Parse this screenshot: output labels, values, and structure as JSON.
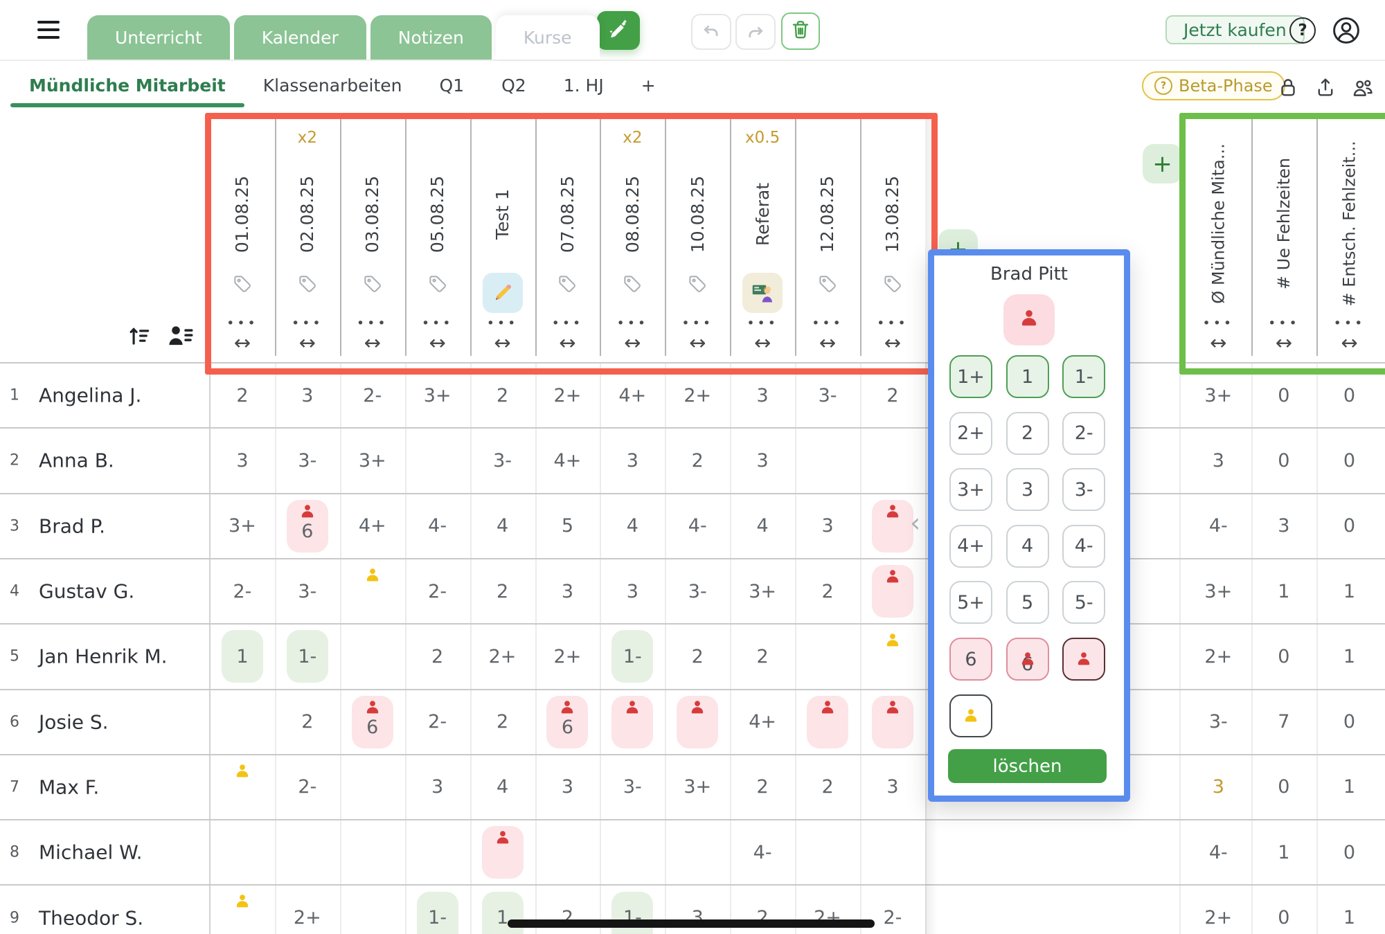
{
  "topbar": {
    "tabs": [
      {
        "label": "Unterricht",
        "variant": "filled"
      },
      {
        "label": "Kalender",
        "variant": "filled"
      },
      {
        "label": "Notizen",
        "variant": "filled"
      },
      {
        "label": "Kurse",
        "variant": "active"
      }
    ],
    "buy_label": "Jetzt kaufen",
    "help_label": "?"
  },
  "subtabs": {
    "items": [
      "Mündliche Mitarbeit",
      "Klassenarbeiten",
      "Q1",
      "Q2",
      "1. HJ",
      "+"
    ],
    "active_index": 0,
    "beta_badge": "Beta-Phase"
  },
  "colors": {
    "tab_green": "#8cc495",
    "accent_green": "#43a047",
    "red_annotation": "#f4604d",
    "green_annotation": "#6dbf4a",
    "blue_annotation": "#5a8cee",
    "multiplier_gold": "#c49a2e",
    "cell_pink": "#fce4e7",
    "cell_green": "#e6f1e3",
    "person_red": "#d63c3c",
    "person_yellow": "#f3c213"
  },
  "grade_columns": [
    {
      "title": "01.08.25",
      "multiplier": "",
      "icon": "tag"
    },
    {
      "title": "02.08.25",
      "multiplier": "x2",
      "icon": "tag"
    },
    {
      "title": "03.08.25",
      "multiplier": "",
      "icon": "tag"
    },
    {
      "title": "05.08.25",
      "multiplier": "",
      "icon": "tag"
    },
    {
      "title": "Test 1",
      "multiplier": "",
      "icon": "pencil-emoji"
    },
    {
      "title": "07.08.25",
      "multiplier": "",
      "icon": "tag"
    },
    {
      "title": "08.08.25",
      "multiplier": "x2",
      "icon": "tag"
    },
    {
      "title": "10.08.25",
      "multiplier": "",
      "icon": "tag"
    },
    {
      "title": "Referat",
      "multiplier": "x0.5",
      "icon": "teacher-emoji"
    },
    {
      "title": "12.08.25",
      "multiplier": "",
      "icon": "tag"
    },
    {
      "title": "13.08.25",
      "multiplier": "",
      "icon": "tag"
    }
  ],
  "summary_columns": [
    {
      "title": "Ø Mündliche Mita..."
    },
    {
      "title": "# Ue Fehlzeiten"
    },
    {
      "title": "# Entsch. Fehlzeit..."
    }
  ],
  "column_menu_glyph": "•••",
  "column_resize_glyph": "↔",
  "students": [
    {
      "num": "1",
      "name": "Angelina J.",
      "grades": [
        {
          "v": "2"
        },
        {
          "v": "3"
        },
        {
          "v": "2-"
        },
        {
          "v": "3+"
        },
        {
          "v": "2"
        },
        {
          "v": "2+"
        },
        {
          "v": "4+"
        },
        {
          "v": "2+"
        },
        {
          "v": "3"
        },
        {
          "v": "3-"
        },
        {
          "v": "2"
        }
      ],
      "summary": [
        {
          "v": "3+"
        },
        {
          "v": "0"
        },
        {
          "v": "0"
        }
      ]
    },
    {
      "num": "2",
      "name": "Anna B.",
      "grades": [
        {
          "v": "3"
        },
        {
          "v": "3-"
        },
        {
          "v": "3+"
        },
        {},
        {
          "v": "3-"
        },
        {
          "v": "4+"
        },
        {
          "v": "3"
        },
        {
          "v": "2"
        },
        {
          "v": "3"
        },
        {},
        {}
      ],
      "summary": [
        {
          "v": "3"
        },
        {
          "v": "0"
        },
        {
          "v": "0"
        }
      ]
    },
    {
      "num": "3",
      "name": "Brad P.",
      "grades": [
        {
          "v": "3+"
        },
        {
          "v": "6",
          "chip": "pink",
          "person": "red"
        },
        {
          "v": "4+"
        },
        {
          "v": "4-"
        },
        {
          "v": "4"
        },
        {
          "v": "5"
        },
        {
          "v": "4"
        },
        {
          "v": "4-"
        },
        {
          "v": "4"
        },
        {
          "v": "3"
        },
        {
          "chip": "pink",
          "person": "red"
        }
      ],
      "summary": [
        {
          "v": "4-"
        },
        {
          "v": "3"
        },
        {
          "v": "0"
        }
      ]
    },
    {
      "num": "4",
      "name": "Gustav G.",
      "grades": [
        {
          "v": "2-"
        },
        {
          "v": "3-"
        },
        {
          "person": "yellow"
        },
        {
          "v": "2-"
        },
        {
          "v": "2"
        },
        {
          "v": "3"
        },
        {
          "v": "3"
        },
        {
          "v": "3-"
        },
        {
          "v": "3+"
        },
        {
          "v": "2"
        },
        {
          "chip": "pink",
          "person": "red"
        }
      ],
      "summary": [
        {
          "v": "3+"
        },
        {
          "v": "1"
        },
        {
          "v": "1"
        }
      ]
    },
    {
      "num": "5",
      "name": "Jan Henrik M.",
      "grades": [
        {
          "v": "1",
          "chip": "green"
        },
        {
          "v": "1-",
          "chip": "green"
        },
        {},
        {
          "v": "2"
        },
        {
          "v": "2+"
        },
        {
          "v": "2+"
        },
        {
          "v": "1-",
          "chip": "green"
        },
        {
          "v": "2"
        },
        {
          "v": "2"
        },
        {},
        {
          "person": "yellow"
        }
      ],
      "summary": [
        {
          "v": "2+"
        },
        {
          "v": "0"
        },
        {
          "v": "1"
        }
      ]
    },
    {
      "num": "6",
      "name": "Josie S.",
      "grades": [
        {},
        {
          "v": "2"
        },
        {
          "v": "6",
          "chip": "pink",
          "person": "red"
        },
        {
          "v": "2-"
        },
        {
          "v": "2"
        },
        {
          "v": "6",
          "chip": "pink",
          "person": "red"
        },
        {
          "chip": "pink",
          "person": "red"
        },
        {
          "chip": "pink",
          "person": "red"
        },
        {
          "v": "4+"
        },
        {
          "chip": "pink",
          "person": "red"
        },
        {
          "chip": "pink",
          "person": "red"
        }
      ],
      "summary": [
        {
          "v": "3-"
        },
        {
          "v": "7"
        },
        {
          "v": "0"
        }
      ]
    },
    {
      "num": "7",
      "name": "Max F.",
      "grades": [
        {
          "person": "yellow"
        },
        {
          "v": "2-"
        },
        {},
        {
          "v": "3"
        },
        {
          "v": "4"
        },
        {
          "v": "3"
        },
        {
          "v": "3-"
        },
        {
          "v": "3+"
        },
        {
          "v": "2"
        },
        {
          "v": "2"
        },
        {
          "v": "3"
        }
      ],
      "summary": [
        {
          "v": "3",
          "gold": true
        },
        {
          "v": "0"
        },
        {
          "v": "1"
        }
      ]
    },
    {
      "num": "8",
      "name": "Michael W.",
      "grades": [
        {},
        {},
        {},
        {},
        {
          "chip": "pink",
          "person": "red"
        },
        {},
        {},
        {},
        {
          "v": "4-"
        },
        {},
        {}
      ],
      "summary": [
        {
          "v": "4-"
        },
        {
          "v": "1"
        },
        {
          "v": "0"
        }
      ]
    },
    {
      "num": "9",
      "name": "Theodor S.",
      "grades": [
        {
          "person": "yellow"
        },
        {
          "v": "2+"
        },
        {},
        {
          "v": "1-",
          "chip": "green"
        },
        {
          "v": "1",
          "chip": "green"
        },
        {
          "v": "2"
        },
        {
          "v": "1-",
          "chip": "green"
        },
        {
          "v": "3"
        },
        {
          "v": "2"
        },
        {
          "v": "2+"
        },
        {
          "v": "2-"
        }
      ],
      "summary": [
        {
          "v": "2+"
        },
        {
          "v": "0"
        },
        {
          "v": "1"
        }
      ]
    }
  ],
  "popup": {
    "student_name": "Brad Pitt",
    "grade_rows": [
      [
        {
          "v": "1+",
          "style": "green"
        },
        {
          "v": "1",
          "style": "green"
        },
        {
          "v": "1-",
          "style": "green"
        }
      ],
      [
        {
          "v": "2+"
        },
        {
          "v": "2"
        },
        {
          "v": "2-"
        }
      ],
      [
        {
          "v": "3+"
        },
        {
          "v": "3"
        },
        {
          "v": "3-"
        }
      ],
      [
        {
          "v": "4+"
        },
        {
          "v": "4"
        },
        {
          "v": "4-"
        }
      ],
      [
        {
          "v": "5+"
        },
        {
          "v": "5"
        },
        {
          "v": "5-"
        }
      ],
      [
        {
          "v": "6",
          "style": "pink"
        },
        {
          "v": "6",
          "style": "pink",
          "person": "red"
        },
        {
          "v": "",
          "style": "pink-selected",
          "person": "red"
        }
      ],
      [
        {
          "v": "",
          "style": "outline-selected",
          "person": "yellow"
        }
      ]
    ],
    "delete_label": "löschen"
  }
}
